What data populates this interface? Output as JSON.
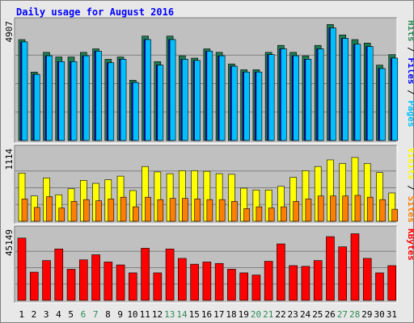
{
  "title": "Daily usage for August 2016",
  "colors": {
    "frame_bg": "#e8e8e8",
    "plot_bg": "#c0c0c0",
    "hits": "#1e7a52",
    "files": "#00bfff",
    "pages": "#00bfff",
    "visits": "#ffff00",
    "sites": "#ff8000",
    "kbytes": "#ff0000",
    "weekend_label": "#2e8b57",
    "weekday_label": "#000000",
    "title": "#0000ff"
  },
  "chart_data": [
    {
      "type": "bar",
      "panel": "hits-files-pages",
      "ylabel_parts": [
        {
          "text": "Pages",
          "color": "#00bfff"
        },
        {
          "text": " / ",
          "color": "#000000"
        },
        {
          "text": "Files",
          "color": "#0000ff"
        },
        {
          "text": " / ",
          "color": "#000000"
        },
        {
          "text": "Hits",
          "color": "#2e8b57"
        }
      ],
      "ymax_label": "4907",
      "ylim": [
        0,
        4907
      ],
      "grid": true,
      "categories": [
        "1",
        "2",
        "3",
        "4",
        "5",
        "6",
        "7",
        "8",
        "9",
        "10",
        "11",
        "12",
        "13",
        "14",
        "15",
        "16",
        "17",
        "18",
        "19",
        "20",
        "21",
        "22",
        "23",
        "24",
        "25",
        "26",
        "27",
        "28",
        "29",
        "30",
        "31"
      ],
      "series": [
        {
          "name": "Hits",
          "values": [
            4350,
            2950,
            3800,
            3600,
            3600,
            3800,
            3950,
            3500,
            3600,
            2600,
            4500,
            3400,
            4500,
            3650,
            3550,
            3950,
            3800,
            3300,
            3050,
            3050,
            3800,
            4100,
            3800,
            3650,
            4100,
            5000,
            4550,
            4350,
            4200,
            3250,
            3700
          ]
        },
        {
          "name": "Files",
          "values": [
            4250,
            2850,
            3650,
            3400,
            3400,
            3650,
            3850,
            3350,
            3500,
            2500,
            4350,
            3250,
            4350,
            3500,
            3450,
            3850,
            3650,
            3200,
            2950,
            2950,
            3700,
            3950,
            3650,
            3500,
            3950,
            4850,
            4400,
            4150,
            4050,
            3100,
            3550
          ]
        },
        {
          "name": "Pages",
          "values": [
            4250,
            2850,
            3650,
            3400,
            3400,
            3650,
            3850,
            3350,
            3500,
            2500,
            4350,
            3250,
            4350,
            3500,
            3450,
            3850,
            3650,
            3200,
            2950,
            2950,
            3700,
            3950,
            3650,
            3500,
            3950,
            4850,
            4400,
            4150,
            4050,
            3100,
            3550
          ]
        }
      ]
    },
    {
      "type": "bar",
      "panel": "visits-sites",
      "ylabel_parts": [
        {
          "text": "Sites",
          "color": "#ff8000"
        },
        {
          "text": " / ",
          "color": "#000000"
        },
        {
          "text": "Visits",
          "color": "#ffff00"
        }
      ],
      "ymax_label": "1114",
      "ylim": [
        0,
        1114
      ],
      "grid": true,
      "categories": [
        "1",
        "2",
        "3",
        "4",
        "5",
        "6",
        "7",
        "8",
        "9",
        "10",
        "11",
        "12",
        "13",
        "14",
        "15",
        "16",
        "17",
        "18",
        "19",
        "20",
        "21",
        "22",
        "23",
        "24",
        "25",
        "26",
        "27",
        "28",
        "29",
        "30",
        "31"
      ],
      "series": [
        {
          "name": "Visits",
          "values": [
            800,
            420,
            720,
            440,
            540,
            680,
            630,
            690,
            750,
            510,
            910,
            820,
            790,
            840,
            840,
            830,
            790,
            780,
            550,
            520,
            520,
            580,
            730,
            840,
            910,
            1020,
            960,
            1060,
            960,
            810,
            470
          ]
        },
        {
          "name": "Sites",
          "values": [
            370,
            230,
            410,
            220,
            330,
            360,
            340,
            370,
            400,
            240,
            400,
            360,
            380,
            380,
            370,
            360,
            360,
            330,
            210,
            240,
            220,
            240,
            330,
            370,
            420,
            420,
            420,
            430,
            400,
            360,
            200
          ]
        }
      ]
    },
    {
      "type": "bar",
      "panel": "kbytes",
      "ylabel_parts": [
        {
          "text": "KBytes",
          "color": "#ff0000"
        }
      ],
      "ymax_label": "45149",
      "ylim": [
        0,
        45149
      ],
      "grid": true,
      "categories": [
        "1",
        "2",
        "3",
        "4",
        "5",
        "6",
        "7",
        "8",
        "9",
        "10",
        "11",
        "12",
        "13",
        "14",
        "15",
        "16",
        "17",
        "18",
        "19",
        "20",
        "21",
        "22",
        "23",
        "24",
        "25",
        "26",
        "27",
        "28",
        "29",
        "30",
        "31"
      ],
      "series": [
        {
          "name": "KBytes",
          "values": [
            43000,
            19500,
            27500,
            35500,
            21500,
            28000,
            31500,
            26500,
            24500,
            19000,
            36000,
            19000,
            35500,
            29000,
            25000,
            26500,
            25500,
            21500,
            19000,
            17500,
            27000,
            39000,
            24000,
            23500,
            27500,
            44000,
            37000,
            46000,
            29000,
            19000,
            24000
          ]
        }
      ]
    }
  ]
}
